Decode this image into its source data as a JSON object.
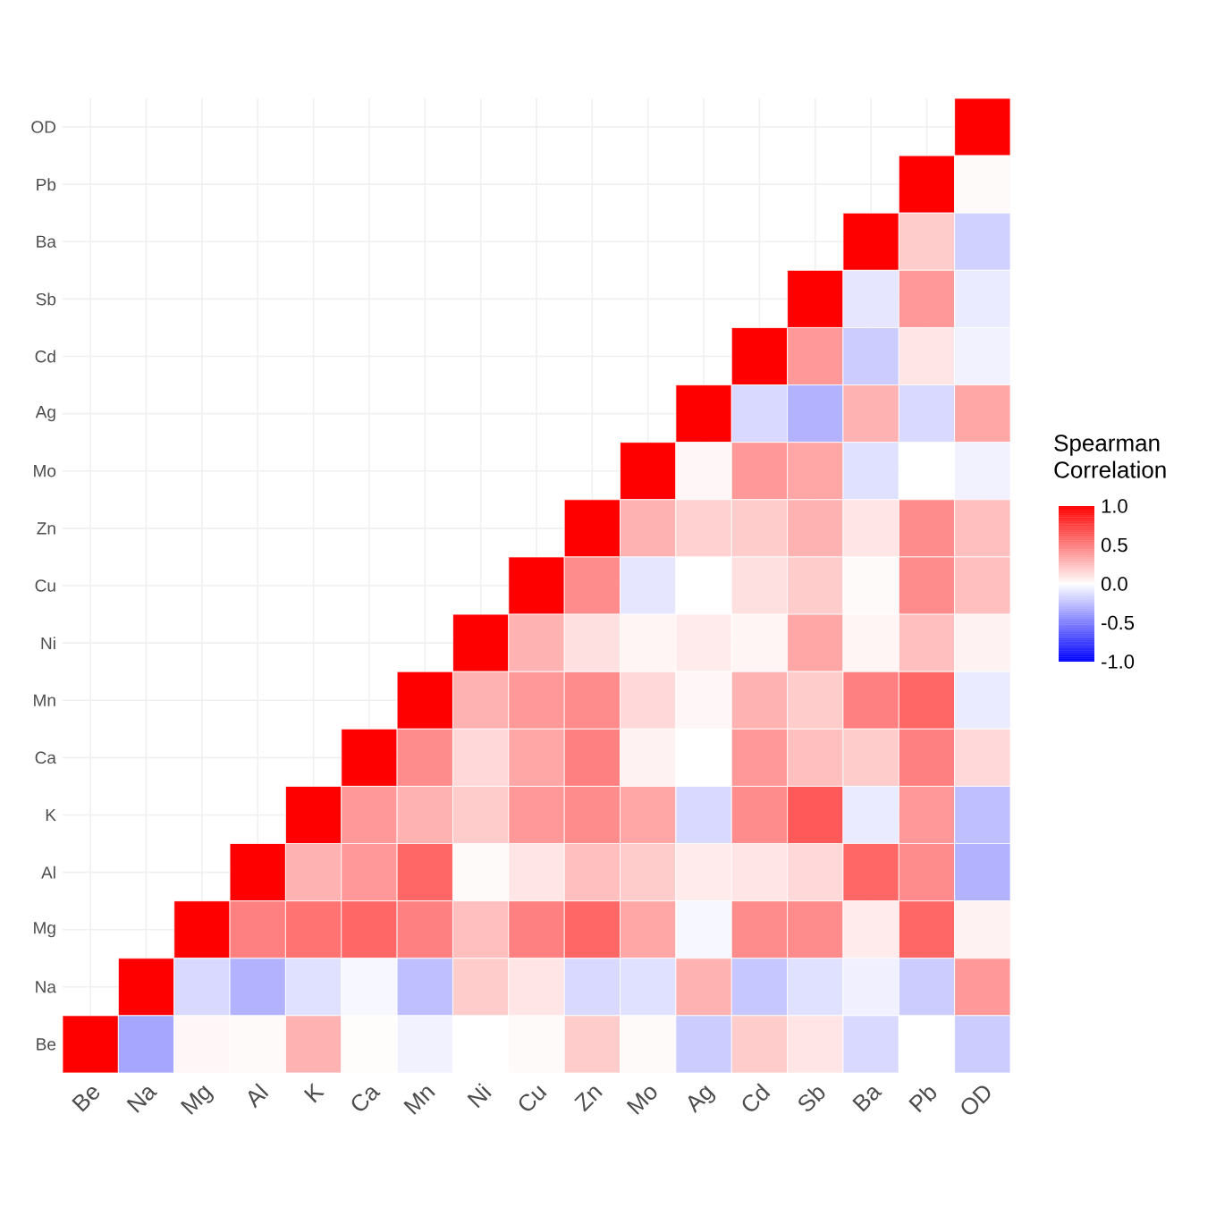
{
  "chart_data": {
    "type": "heatmap",
    "categories": [
      "Be",
      "Na",
      "Mg",
      "Al",
      "K",
      "Ca",
      "Mn",
      "Ni",
      "Cu",
      "Zn",
      "Mo",
      "Ag",
      "Cd",
      "Sb",
      "Ba",
      "Pb",
      "OD"
    ],
    "y_categories": [
      "OD",
      "Pb",
      "Ba",
      "Sb",
      "Cd",
      "Ag",
      "Mo",
      "Zn",
      "Cu",
      "Ni",
      "Mn",
      "Ca",
      "K",
      "Al",
      "Mg",
      "Na",
      "Be"
    ],
    "cells": [
      [
        null,
        null,
        null,
        null,
        null,
        null,
        null,
        null,
        null,
        null,
        null,
        null,
        null,
        null,
        null,
        null,
        1.0
      ],
      [
        null,
        null,
        null,
        null,
        null,
        null,
        null,
        null,
        null,
        null,
        null,
        null,
        null,
        null,
        null,
        1.0,
        0.02
      ],
      [
        null,
        null,
        null,
        null,
        null,
        null,
        null,
        null,
        null,
        null,
        null,
        null,
        null,
        null,
        1.0,
        0.2,
        -0.18
      ],
      [
        null,
        null,
        null,
        null,
        null,
        null,
        null,
        null,
        null,
        null,
        null,
        null,
        null,
        1.0,
        -0.1,
        0.4,
        -0.08
      ],
      [
        null,
        null,
        null,
        null,
        null,
        null,
        null,
        null,
        null,
        null,
        null,
        null,
        1.0,
        0.4,
        -0.2,
        0.1,
        -0.05
      ],
      [
        null,
        null,
        null,
        null,
        null,
        null,
        null,
        null,
        null,
        null,
        null,
        1.0,
        -0.15,
        -0.3,
        0.3,
        -0.15,
        0.35
      ],
      [
        null,
        null,
        null,
        null,
        null,
        null,
        null,
        null,
        null,
        null,
        1.0,
        0.03,
        0.4,
        0.35,
        -0.12,
        0.0,
        -0.05
      ],
      [
        null,
        null,
        null,
        null,
        null,
        null,
        null,
        null,
        null,
        1.0,
        0.3,
        0.18,
        0.2,
        0.3,
        0.1,
        0.45,
        0.25
      ],
      [
        null,
        null,
        null,
        null,
        null,
        null,
        null,
        null,
        1.0,
        0.45,
        -0.1,
        0.0,
        0.12,
        0.2,
        0.02,
        0.45,
        0.25
      ],
      [
        null,
        null,
        null,
        null,
        null,
        null,
        null,
        1.0,
        0.3,
        0.12,
        0.04,
        0.08,
        0.04,
        0.35,
        0.04,
        0.25,
        0.05
      ],
      [
        null,
        null,
        null,
        null,
        null,
        null,
        1.0,
        0.3,
        0.4,
        0.45,
        0.15,
        0.03,
        0.3,
        0.2,
        0.5,
        0.6,
        -0.08
      ],
      [
        null,
        null,
        null,
        null,
        null,
        1.0,
        0.45,
        0.15,
        0.35,
        0.5,
        0.05,
        0.0,
        0.4,
        0.25,
        0.2,
        0.5,
        0.15
      ],
      [
        null,
        null,
        null,
        null,
        1.0,
        0.4,
        0.3,
        0.2,
        0.4,
        0.45,
        0.35,
        -0.15,
        0.45,
        0.65,
        -0.08,
        0.4,
        -0.25
      ],
      [
        null,
        null,
        null,
        1.0,
        0.3,
        0.4,
        0.6,
        0.02,
        0.1,
        0.25,
        0.2,
        0.08,
        0.1,
        0.15,
        0.6,
        0.45,
        -0.3
      ],
      [
        null,
        null,
        1.0,
        0.5,
        0.55,
        0.6,
        0.5,
        0.25,
        0.5,
        0.6,
        0.35,
        -0.03,
        0.45,
        0.45,
        0.08,
        0.6,
        0.05
      ],
      [
        null,
        1.0,
        -0.15,
        -0.3,
        -0.12,
        -0.03,
        -0.25,
        0.2,
        0.1,
        -0.15,
        -0.12,
        0.3,
        -0.22,
        -0.12,
        -0.06,
        -0.2,
        0.4
      ],
      [
        1.0,
        -0.35,
        0.03,
        0.02,
        0.3,
        0.01,
        -0.05,
        0.0,
        0.02,
        0.2,
        0.02,
        -0.2,
        0.2,
        0.1,
        -0.15,
        0.0,
        -0.2
      ]
    ],
    "clabel": "Spearman Correlation",
    "clim": [
      -1.0,
      1.0
    ],
    "cticks": [
      {
        "value": 1.0,
        "label": "1.0"
      },
      {
        "value": 0.5,
        "label": "0.5"
      },
      {
        "value": 0.0,
        "label": "0.0"
      },
      {
        "value": -0.5,
        "label": "-0.5"
      },
      {
        "value": -1.0,
        "label": "-1.0"
      }
    ],
    "grid": true
  }
}
